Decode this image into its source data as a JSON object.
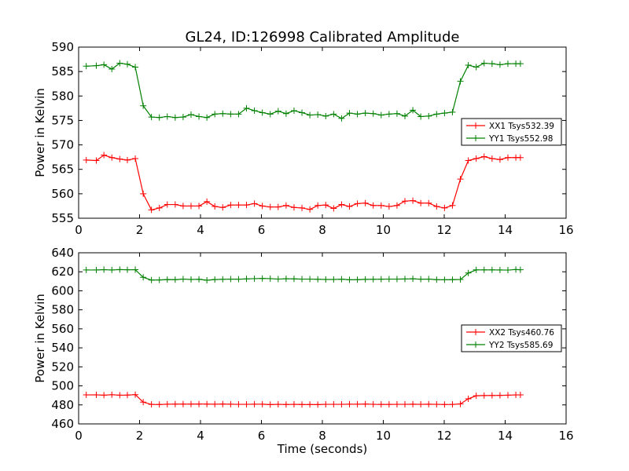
{
  "title": "GL24, ID:126998 Calibrated Amplitude",
  "colors": {
    "xx": "#ff0000",
    "yy": "#008000",
    "axes": "#000000",
    "background": "#ffffff"
  },
  "chart_data": [
    {
      "type": "line",
      "title": "GL24, ID:126998 Calibrated Amplitude",
      "xlabel": "",
      "ylabel": "Power in Kelvin",
      "xlim": [
        0,
        16
      ],
      "ylim": [
        555,
        590
      ],
      "xticks": [
        0,
        2,
        4,
        6,
        8,
        10,
        12,
        14,
        16
      ],
      "yticks": [
        555,
        560,
        565,
        570,
        575,
        580,
        585,
        590
      ],
      "grid": false,
      "legend_position": "right",
      "x": [
        0.25,
        0.58,
        0.83,
        1.09,
        1.35,
        1.6,
        1.86,
        2.12,
        2.39,
        2.65,
        2.91,
        3.17,
        3.43,
        3.69,
        3.95,
        4.21,
        4.47,
        4.73,
        4.99,
        5.25,
        5.51,
        5.77,
        6.03,
        6.29,
        6.55,
        6.81,
        7.07,
        7.33,
        7.59,
        7.85,
        8.11,
        8.37,
        8.63,
        8.89,
        9.15,
        9.41,
        9.67,
        9.93,
        10.19,
        10.45,
        10.71,
        10.97,
        11.23,
        11.49,
        11.75,
        12.01,
        12.27,
        12.53,
        12.79,
        13.05,
        13.31,
        13.57,
        13.83,
        14.09,
        14.35,
        14.5
      ],
      "series": [
        {
          "name": "XX1 Tsys532.39",
          "color": "#ff0000",
          "values": [
            566.9,
            566.8,
            567.9,
            567.4,
            567.1,
            566.9,
            567.2,
            560.0,
            556.7,
            557.1,
            557.8,
            557.8,
            557.5,
            557.5,
            557.5,
            558.4,
            557.4,
            557.2,
            557.7,
            557.7,
            557.7,
            558.0,
            557.5,
            557.3,
            557.3,
            557.6,
            557.2,
            557.1,
            556.8,
            557.6,
            557.7,
            557.0,
            557.8,
            557.4,
            558.0,
            558.1,
            557.6,
            557.6,
            557.4,
            557.6,
            558.5,
            558.6,
            558.1,
            558.1,
            557.4,
            557.1,
            557.6,
            563.0,
            566.8,
            567.2,
            567.6,
            567.2,
            567.0,
            567.4,
            567.4,
            567.4
          ]
        },
        {
          "name": "YY1 Tsys552.98",
          "color": "#008000",
          "values": [
            586.1,
            586.2,
            586.4,
            585.5,
            586.7,
            586.5,
            585.9,
            578.0,
            575.7,
            575.6,
            575.8,
            575.6,
            575.7,
            576.2,
            575.8,
            575.6,
            576.3,
            576.4,
            576.3,
            576.3,
            577.5,
            577.0,
            576.6,
            576.3,
            576.9,
            576.4,
            577.0,
            576.6,
            576.1,
            576.2,
            575.9,
            576.3,
            575.4,
            576.5,
            576.3,
            576.5,
            576.4,
            576.1,
            576.3,
            576.4,
            575.9,
            577.1,
            575.8,
            575.9,
            576.3,
            576.5,
            576.7,
            583.0,
            586.3,
            585.9,
            586.7,
            586.6,
            586.4,
            586.6,
            586.6,
            586.6
          ]
        }
      ]
    },
    {
      "type": "line",
      "title": "",
      "xlabel": "Time (seconds)",
      "ylabel": "Power in Kelvin",
      "xlim": [
        0,
        16
      ],
      "ylim": [
        460,
        640
      ],
      "xticks": [
        0,
        2,
        4,
        6,
        8,
        10,
        12,
        14,
        16
      ],
      "yticks": [
        460,
        480,
        500,
        520,
        540,
        560,
        580,
        600,
        620,
        640
      ],
      "grid": false,
      "legend_position": "right",
      "x": [
        0.25,
        0.58,
        0.83,
        1.09,
        1.35,
        1.6,
        1.86,
        2.12,
        2.39,
        2.65,
        2.91,
        3.17,
        3.43,
        3.69,
        3.95,
        4.21,
        4.47,
        4.73,
        4.99,
        5.25,
        5.51,
        5.77,
        6.03,
        6.29,
        6.55,
        6.81,
        7.07,
        7.33,
        7.59,
        7.85,
        8.11,
        8.37,
        8.63,
        8.89,
        9.15,
        9.41,
        9.67,
        9.93,
        10.19,
        10.45,
        10.71,
        10.97,
        11.23,
        11.49,
        11.75,
        12.01,
        12.27,
        12.53,
        12.79,
        13.05,
        13.31,
        13.57,
        13.83,
        14.09,
        14.35,
        14.5
      ],
      "series": [
        {
          "name": "XX2 Tsys460.76",
          "color": "#ff0000",
          "values": [
            490.5,
            490.6,
            490.2,
            490.7,
            490.2,
            490.3,
            490.8,
            482.9,
            480.5,
            480.4,
            480.7,
            480.8,
            480.8,
            480.8,
            480.9,
            480.8,
            480.7,
            480.9,
            480.7,
            480.6,
            480.6,
            480.7,
            480.7,
            480.3,
            480.6,
            480.4,
            480.6,
            480.4,
            480.4,
            480.3,
            480.6,
            480.6,
            480.6,
            480.7,
            480.7,
            480.9,
            480.6,
            480.5,
            480.5,
            480.6,
            480.6,
            480.7,
            480.6,
            480.7,
            480.6,
            480.4,
            480.5,
            481.0,
            486.4,
            489.6,
            489.8,
            489.9,
            490.0,
            490.2,
            490.5,
            490.5
          ]
        },
        {
          "name": "YY2 Tsys585.69",
          "color": "#008000",
          "values": [
            621.9,
            621.9,
            622.2,
            621.9,
            622.3,
            622.1,
            622.2,
            614.2,
            611.3,
            611.4,
            611.8,
            611.7,
            612.3,
            611.9,
            612.1,
            611.1,
            611.8,
            612.1,
            612.3,
            612.2,
            612.5,
            612.8,
            613.0,
            612.8,
            612.3,
            612.7,
            612.5,
            612.3,
            612.3,
            612.1,
            611.9,
            611.9,
            612.2,
            611.6,
            611.7,
            612.0,
            612.1,
            612.2,
            612.3,
            612.3,
            612.4,
            612.6,
            612.2,
            612.3,
            611.7,
            611.6,
            611.7,
            611.9,
            618.7,
            622.0,
            622.0,
            622.0,
            621.9,
            621.8,
            622.4,
            622.1
          ]
        }
      ]
    }
  ]
}
